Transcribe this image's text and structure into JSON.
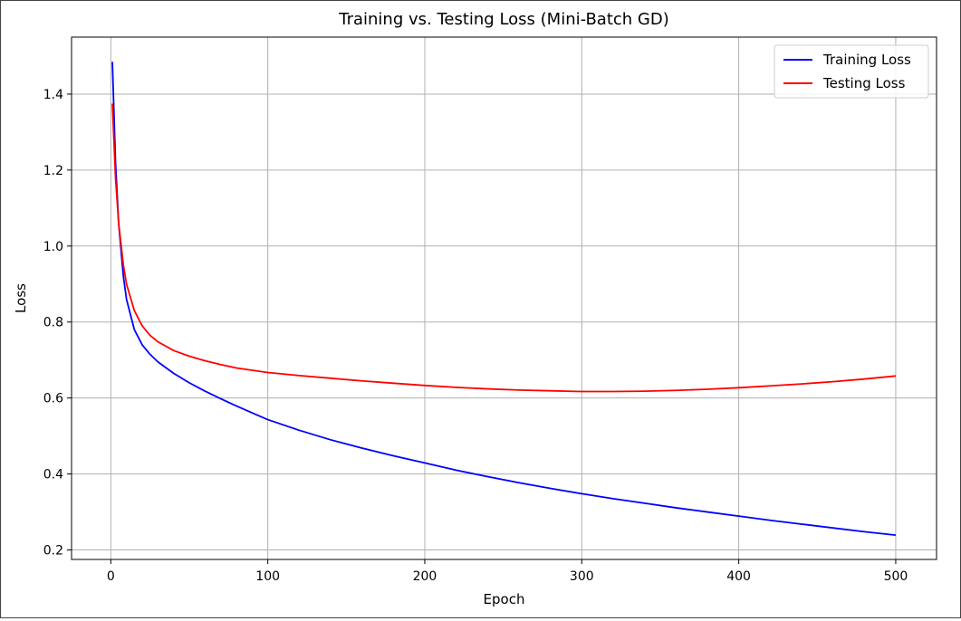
{
  "chart_data": {
    "type": "line",
    "title": "Training vs. Testing Loss (Mini-Batch GD)",
    "xlabel": "Epoch",
    "ylabel": "Loss",
    "xlim": [
      -25,
      526
    ],
    "ylim": [
      0.175,
      1.55
    ],
    "xticks": [
      0,
      100,
      200,
      300,
      400,
      500
    ],
    "yticks": [
      0.2,
      0.4,
      0.6,
      0.8,
      1.0,
      1.2,
      1.4
    ],
    "xtick_labels": [
      "0",
      "100",
      "200",
      "300",
      "400",
      "500"
    ],
    "ytick_labels": [
      "0.2",
      "0.4",
      "0.6",
      "0.8",
      "1.0",
      "1.2",
      "1.4"
    ],
    "grid": true,
    "legend_position": "top-right",
    "series": [
      {
        "name": "Training Loss",
        "color": "#0000ff",
        "x": [
          1,
          3,
          5,
          8,
          10,
          15,
          20,
          25,
          30,
          40,
          50,
          60,
          70,
          80,
          90,
          100,
          120,
          140,
          160,
          180,
          200,
          220,
          240,
          260,
          280,
          300,
          320,
          340,
          360,
          380,
          400,
          420,
          440,
          460,
          480,
          500
        ],
        "y": [
          1.485,
          1.22,
          1.06,
          0.92,
          0.86,
          0.78,
          0.74,
          0.715,
          0.695,
          0.665,
          0.64,
          0.618,
          0.598,
          0.579,
          0.561,
          0.543,
          0.515,
          0.49,
          0.468,
          0.448,
          0.429,
          0.41,
          0.393,
          0.377,
          0.362,
          0.348,
          0.335,
          0.323,
          0.311,
          0.3,
          0.289,
          0.278,
          0.268,
          0.258,
          0.248,
          0.239
        ]
      },
      {
        "name": "Testing Loss",
        "color": "#ff0000",
        "x": [
          1,
          3,
          5,
          8,
          10,
          15,
          20,
          25,
          30,
          40,
          50,
          60,
          70,
          80,
          90,
          100,
          120,
          140,
          160,
          180,
          200,
          220,
          240,
          260,
          280,
          300,
          320,
          340,
          360,
          380,
          400,
          420,
          440,
          460,
          480,
          500
        ],
        "y": [
          1.375,
          1.18,
          1.06,
          0.95,
          0.9,
          0.83,
          0.79,
          0.765,
          0.748,
          0.725,
          0.71,
          0.698,
          0.688,
          0.679,
          0.673,
          0.667,
          0.659,
          0.652,
          0.645,
          0.639,
          0.633,
          0.628,
          0.624,
          0.621,
          0.619,
          0.617,
          0.617,
          0.618,
          0.62,
          0.623,
          0.627,
          0.632,
          0.637,
          0.643,
          0.65,
          0.658
        ]
      }
    ]
  }
}
